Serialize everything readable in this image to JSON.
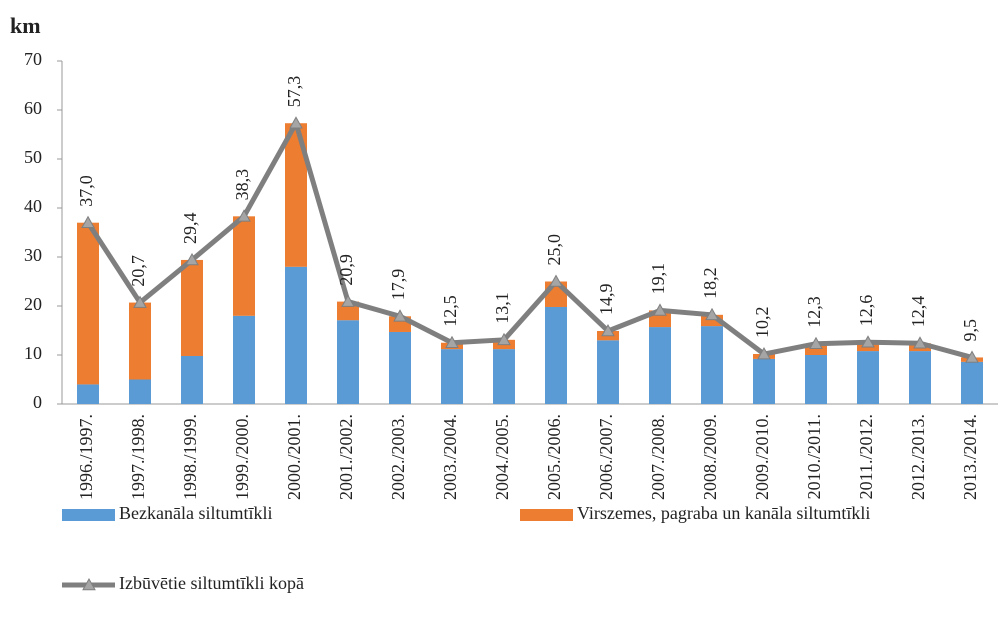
{
  "chart_data": {
    "type": "bar",
    "stacked": true,
    "y_label": "km",
    "categories": [
      "1996./1997.",
      "1997./1998.",
      "1998./1999.",
      "1999./2000.",
      "2000./2001.",
      "2001./2002.",
      "2002./2003.",
      "2003./2004.",
      "2004./2005.",
      "2005./2006.",
      "2006./2007.",
      "2007./2008.",
      "2008./2009.",
      "2009./2010.",
      "2010./2011.",
      "2011./2012.",
      "2012./2013.",
      "2013./2014."
    ],
    "series": [
      {
        "name": "Bezkanāla siltumtīkli",
        "type": "bar",
        "color": "#5b9bd5",
        "values": [
          4,
          5,
          9.8,
          18,
          28,
          17.1,
          14.7,
          11.2,
          11.2,
          19.8,
          13,
          15.7,
          15.9,
          9.2,
          10,
          10.8,
          10.8,
          8.6
        ]
      },
      {
        "name": "Virszemes, pagraba un kanāla siltumtīkli",
        "type": "bar",
        "color": "#ed7d31",
        "values": [
          33,
          15.7,
          19.6,
          20.3,
          29.3,
          3.8,
          3.2,
          1.3,
          1.9,
          5.2,
          1.9,
          3.4,
          2.3,
          1,
          2.3,
          1.8,
          1.6,
          0.9
        ]
      },
      {
        "name": "Izbūvētie siltumtīkli kopā",
        "type": "line",
        "color": "#7f7f7f",
        "values": [
          37,
          20.7,
          29.4,
          38.3,
          57.3,
          20.9,
          17.9,
          12.5,
          13.1,
          25,
          14.9,
          19.1,
          18.2,
          10.2,
          12.3,
          12.6,
          12.4,
          9.5
        ],
        "value_labels": [
          "37,0",
          "20,7",
          "29,4",
          "38,3",
          "57,3",
          "20,9",
          "17,9",
          "12,5",
          "13,1",
          "25,0",
          "14,9",
          "19,1",
          "18,2",
          "10,2",
          "12,3",
          "12,6",
          "12,4",
          "9,5"
        ]
      }
    ],
    "ylim": [
      0,
      70
    ],
    "yticks": [
      0,
      10,
      20,
      30,
      40,
      50,
      60,
      70
    ],
    "grid": false
  }
}
